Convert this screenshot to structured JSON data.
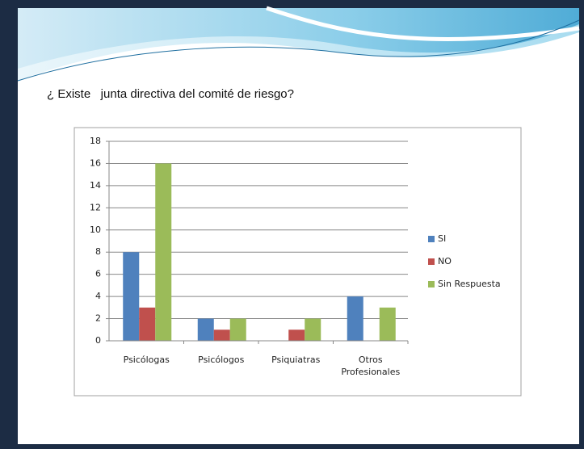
{
  "chart_data": {
    "type": "bar",
    "title": "¿ Existe   junta directiva del comité de riesgo?",
    "categories": [
      "Psicólogas",
      "Psicólogos",
      "Psiquiatras",
      "Otros Profesionales"
    ],
    "series": [
      {
        "name": "SI",
        "color": "#4f81bd",
        "values": [
          8,
          2,
          0,
          4
        ]
      },
      {
        "name": "NO",
        "color": "#c0504d",
        "values": [
          3,
          1,
          1,
          0
        ]
      },
      {
        "name": "Sin Respuesta",
        "color": "#9bbb59",
        "values": [
          16,
          2,
          2,
          3
        ]
      }
    ],
    "ylim": [
      0,
      18
    ],
    "yticks": [
      0,
      2,
      4,
      6,
      8,
      10,
      12,
      14,
      16,
      18
    ],
    "grid": true,
    "legend": "right"
  }
}
